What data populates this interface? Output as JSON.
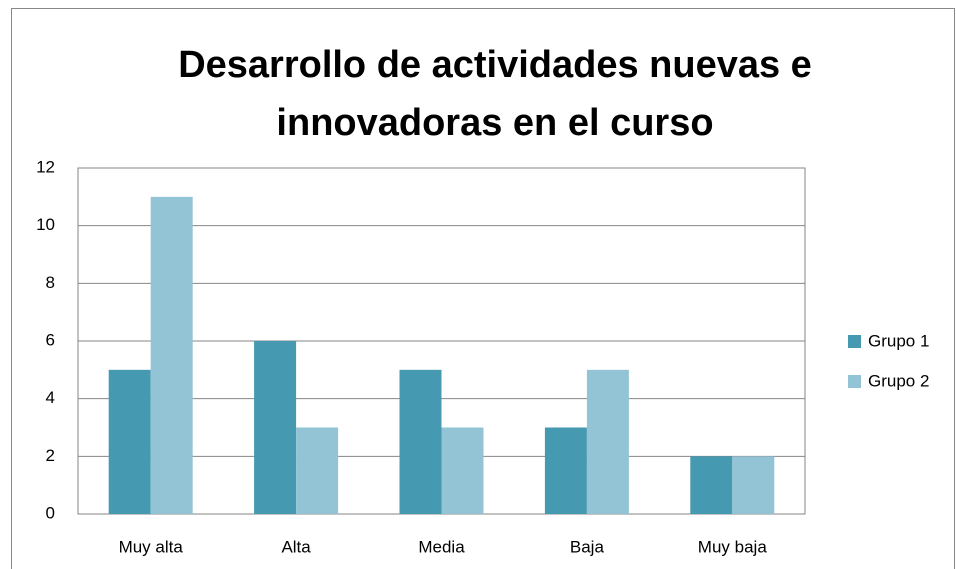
{
  "chart_data": {
    "type": "bar",
    "title": "Desarrollo de actividades nuevas e innovadoras en el curso",
    "categories": [
      "Muy alta",
      "Alta",
      "Media",
      "Baja",
      "Muy baja"
    ],
    "series": [
      {
        "name": "Grupo 1",
        "color": "#4599b1",
        "values": [
          5,
          6,
          5,
          3,
          2
        ]
      },
      {
        "name": "Grupo 2",
        "color": "#93c4d5",
        "values": [
          11,
          3,
          3,
          5,
          2
        ]
      }
    ],
    "ylim": [
      0,
      12
    ],
    "yticks": [
      0,
      2,
      4,
      6,
      8,
      10,
      12
    ],
    "grid": true,
    "legend": "right"
  }
}
